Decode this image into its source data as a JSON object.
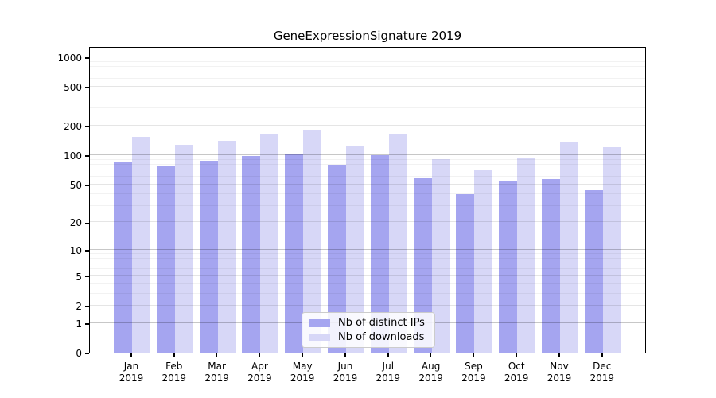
{
  "title": "GeneExpressionSignature 2019",
  "year": "2019",
  "chart_data": {
    "type": "bar",
    "title": "GeneExpressionSignature 2019",
    "xlabel": "",
    "ylabel": "",
    "yscale": "log10(1+x)",
    "ylim": [
      0,
      1300
    ],
    "grid": true,
    "categories": [
      "Jan 2019",
      "Feb 2019",
      "Mar 2019",
      "Apr 2019",
      "May 2019",
      "Jun 2019",
      "Jul 2019",
      "Aug 2019",
      "Sep 2019",
      "Oct 2019",
      "Nov 2019",
      "Dec 2019"
    ],
    "months": [
      "Jan",
      "Feb",
      "Mar",
      "Apr",
      "May",
      "Jun",
      "Jul",
      "Aug",
      "Sep",
      "Oct",
      "Nov",
      "Dec"
    ],
    "yticks": [
      0,
      1,
      2,
      5,
      10,
      20,
      50,
      100,
      200,
      500,
      1000
    ],
    "major_gridline_ticks": [
      1,
      10,
      100,
      1000
    ],
    "minor_gridline_ticks": [
      3,
      4,
      6,
      7,
      8,
      9,
      30,
      40,
      60,
      70,
      80,
      90,
      300,
      400,
      600,
      700,
      800,
      900
    ],
    "legend_position": "lower center inside plot",
    "series": [
      {
        "name": "Nb of distinct IPs",
        "color": "#a5a5f0",
        "values": [
          85,
          78,
          88,
          98,
          104,
          80,
          101,
          59,
          40,
          54,
          57,
          44
        ]
      },
      {
        "name": "Nb of downloads",
        "color": "#d7d7f7",
        "values": [
          154,
          128,
          140,
          166,
          182,
          123,
          166,
          91,
          71,
          93,
          138,
          121
        ]
      }
    ]
  },
  "colors": {
    "background": "#ffffff",
    "axis": "#000000",
    "ips_bar": "#a5a5f0",
    "downloads_bar": "#d7d7f7",
    "legend_border": "#cccccc"
  }
}
